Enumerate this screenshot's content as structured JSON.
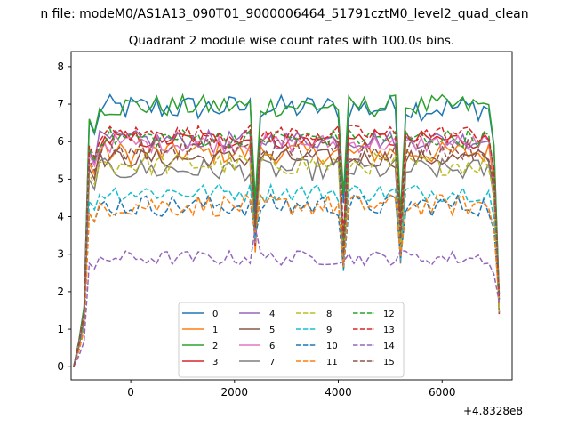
{
  "chart_data": {
    "type": "line",
    "supertitle": "n file: modeM0/AS1A13_090T01_9000006464_51791cztM0_level2_quad_clean",
    "title": "Quadrant 2 module wise count rates with 100.0s bins.",
    "xlabel": "",
    "ylabel": "",
    "x_offset_label": "+4.8328e8",
    "xlim": [
      -1150,
      7350
    ],
    "ylim": [
      -0.35,
      8.4
    ],
    "xticks": [
      0,
      2000,
      4000,
      6000
    ],
    "yticks": [
      0,
      1,
      2,
      3,
      4,
      5,
      6,
      7,
      8
    ],
    "grid": false,
    "legend": {
      "location": "lower center",
      "columns": 4
    },
    "x_start": -1100,
    "x_step": 100,
    "dips": {
      "x": [
        2400,
        4100,
        5200
      ],
      "values": [
        3.0,
        2.1,
        2.4
      ]
    },
    "series": [
      {
        "name": "0",
        "color": "#1f77b4",
        "style": "solid",
        "level": 6.9,
        "noise": 0.35
      },
      {
        "name": "1",
        "color": "#ff7f0e",
        "style": "solid",
        "level": 5.7,
        "noise": 0.3
      },
      {
        "name": "2",
        "color": "#2ca02c",
        "style": "solid",
        "level": 6.95,
        "noise": 0.3
      },
      {
        "name": "3",
        "color": "#d62728",
        "style": "solid",
        "level": 6.05,
        "noise": 0.25
      },
      {
        "name": "4",
        "color": "#9467bd",
        "style": "solid",
        "level": 6.05,
        "noise": 0.25
      },
      {
        "name": "5",
        "color": "#8c564b",
        "style": "solid",
        "level": 5.55,
        "noise": 0.25
      },
      {
        "name": "6",
        "color": "#e377c2",
        "style": "solid",
        "level": 5.95,
        "noise": 0.25
      },
      {
        "name": "7",
        "color": "#7f7f7f",
        "style": "solid",
        "level": 5.25,
        "noise": 0.3
      },
      {
        "name": "8",
        "color": "#bcbd22",
        "style": "dashed",
        "level": 5.4,
        "noise": 0.3
      },
      {
        "name": "9",
        "color": "#17becf",
        "style": "dashed",
        "level": 4.65,
        "noise": 0.25
      },
      {
        "name": "10",
        "color": "#1f77b4",
        "style": "dashed",
        "level": 4.3,
        "noise": 0.3
      },
      {
        "name": "11",
        "color": "#ff7f0e",
        "style": "dashed",
        "level": 4.3,
        "noise": 0.3
      },
      {
        "name": "12",
        "color": "#2ca02c",
        "style": "dashed",
        "level": 6.1,
        "noise": 0.25
      },
      {
        "name": "13",
        "color": "#d62728",
        "style": "dashed",
        "level": 6.2,
        "noise": 0.25
      },
      {
        "name": "14",
        "color": "#9467bd",
        "style": "dashed",
        "level": 2.9,
        "noise": 0.2
      },
      {
        "name": "15",
        "color": "#8c564b",
        "style": "dashed",
        "level": 5.8,
        "noise": 0.3
      }
    ]
  }
}
